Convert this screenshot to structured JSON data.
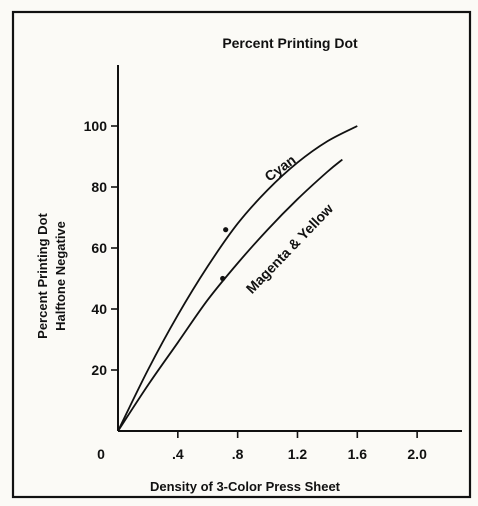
{
  "chart_data": {
    "type": "line",
    "title": "Percent Printing Dot",
    "xlabel": "Density of 3-Color Press Sheet",
    "ylabel_lines": [
      "Percent Printing Dot",
      "Halftone Negative"
    ],
    "xlim": [
      0,
      2.3
    ],
    "ylim": [
      0,
      120
    ],
    "x_ticks": [
      {
        "value": 0,
        "label": "0"
      },
      {
        "value": 0.4,
        "label": ".4"
      },
      {
        "value": 0.8,
        "label": ".8"
      },
      {
        "value": 1.2,
        "label": "1.2"
      },
      {
        "value": 1.6,
        "label": "1.6"
      },
      {
        "value": 2.0,
        "label": "2.0"
      }
    ],
    "y_ticks": [
      {
        "value": 20,
        "label": "20"
      },
      {
        "value": 40,
        "label": "40"
      },
      {
        "value": 60,
        "label": "60"
      },
      {
        "value": 80,
        "label": "80"
      },
      {
        "value": 100,
        "label": "100"
      }
    ],
    "series": [
      {
        "name": "Cyan",
        "x": [
          0,
          0.2,
          0.4,
          0.6,
          0.8,
          1.0,
          1.2,
          1.4,
          1.6
        ],
        "values": [
          0,
          20,
          38,
          54,
          68,
          79,
          88,
          95,
          100
        ],
        "marked_points": [
          {
            "x": 0.72,
            "y": 66
          }
        ]
      },
      {
        "name": "Magenta & Yellow",
        "x": [
          0,
          0.2,
          0.4,
          0.6,
          0.8,
          1.0,
          1.2,
          1.4,
          1.5
        ],
        "values": [
          0,
          15,
          29,
          43,
          55,
          66,
          76,
          85,
          89
        ],
        "marked_points": [
          {
            "x": 0.7,
            "y": 50
          }
        ]
      }
    ],
    "grid": false,
    "legend": "none (series labeled directly on curves)"
  }
}
